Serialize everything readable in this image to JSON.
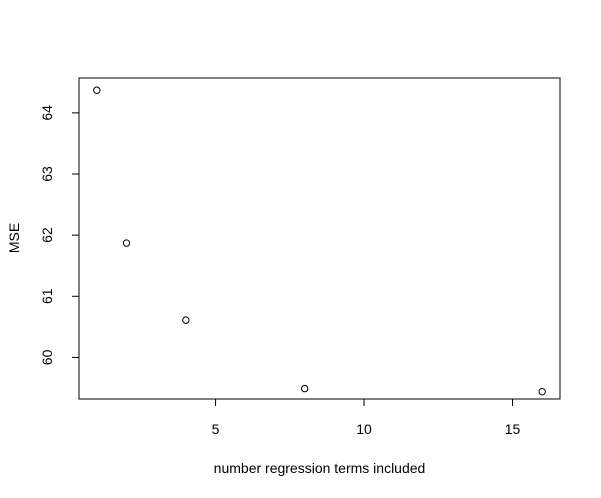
{
  "chart_data": {
    "type": "scatter",
    "title": "",
    "xlabel": "number regression terms included",
    "ylabel": "MSE",
    "x": [
      1,
      2,
      4,
      8,
      16
    ],
    "y": [
      64.37,
      61.87,
      60.61,
      59.49,
      59.44
    ],
    "xlim": [
      0.4,
      16.6
    ],
    "ylim": [
      59.32,
      64.57
    ],
    "xticks": [
      5,
      10,
      15
    ],
    "yticks": [
      60,
      61,
      62,
      63,
      64
    ],
    "grid": false,
    "marker": "open-circle"
  }
}
